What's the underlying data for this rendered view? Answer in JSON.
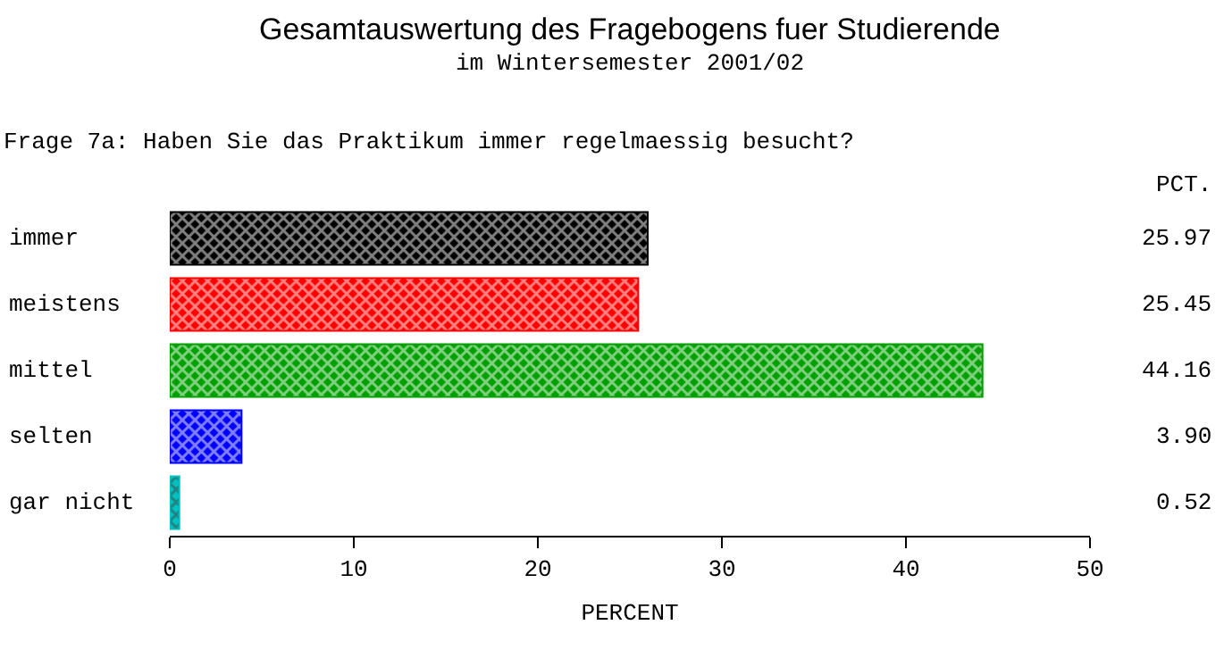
{
  "chart_data": {
    "type": "bar",
    "orientation": "horizontal",
    "title": "Gesamtauswertung des Fragebogens fuer Studierende",
    "subtitle": "im Wintersemester 2001/02",
    "xlabel": "PERCENT",
    "annotations": [
      "Frage 7a: Haben Sie das Praktikum immer regelmaessig besucht?",
      "PCT."
    ],
    "categories": [
      "immer",
      "meistens",
      "mittel",
      "selten",
      "gar nicht"
    ],
    "values": [
      25.97,
      25.45,
      44.16,
      3.9,
      0.52
    ],
    "colors": [
      "#000000",
      "#ff0000",
      "#00a000",
      "#0000ff",
      "#00c0c0"
    ],
    "value_labels": [
      "25.97",
      "25.45",
      "44.16",
      "3.90",
      "0.52"
    ],
    "xlim": [
      0,
      50
    ],
    "xticks": [
      0,
      10,
      20,
      30,
      40,
      50
    ],
    "grid": false
  }
}
